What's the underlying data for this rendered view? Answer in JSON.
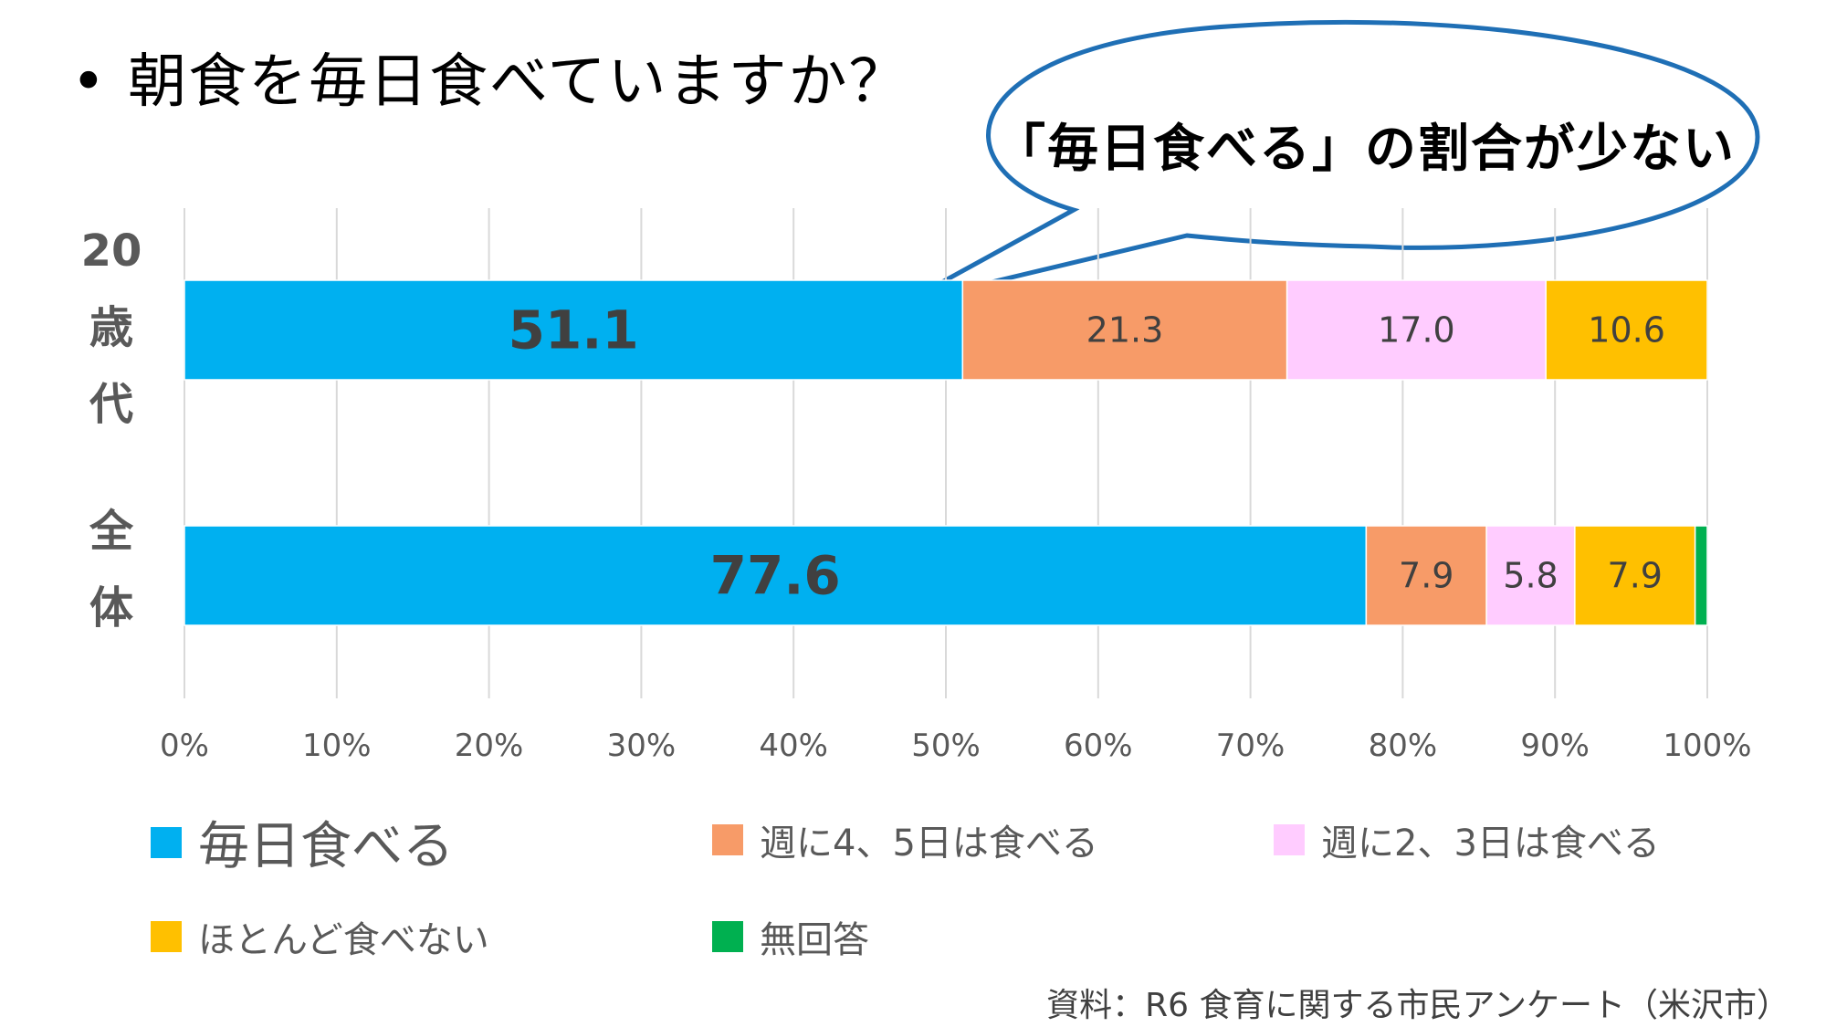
{
  "title": "• 朝食を毎日食べていますか？",
  "callout": "「毎日食べる」の割合が少ない",
  "source": "資料：R6 食育に関する市民アンケート（米沢市）",
  "chart_data": {
    "type": "bar",
    "orientation": "horizontal-stacked-100",
    "categories": [
      "20歳代",
      "全体"
    ],
    "series": [
      {
        "name": "毎日食べる",
        "color": "#00B0F0",
        "values": [
          51.1,
          77.6
        ]
      },
      {
        "name": "週に4、5日は食べる",
        "color": "#F79B68",
        "values": [
          21.3,
          7.9
        ]
      },
      {
        "name": "週に2、3日は食べる",
        "color": "#FFCCFF",
        "values": [
          17.0,
          5.8
        ]
      },
      {
        "name": "ほとんど食べない",
        "color": "#FFC000",
        "values": [
          10.6,
          7.9
        ]
      },
      {
        "name": "無回答",
        "color": "#00B050",
        "values": [
          0.0,
          0.8
        ]
      }
    ],
    "xlim": [
      0,
      100
    ],
    "xticks": [
      "0%",
      "10%",
      "20%",
      "30%",
      "40%",
      "50%",
      "60%",
      "70%",
      "80%",
      "90%",
      "100%"
    ],
    "grid": true,
    "legend_position": "bottom"
  }
}
